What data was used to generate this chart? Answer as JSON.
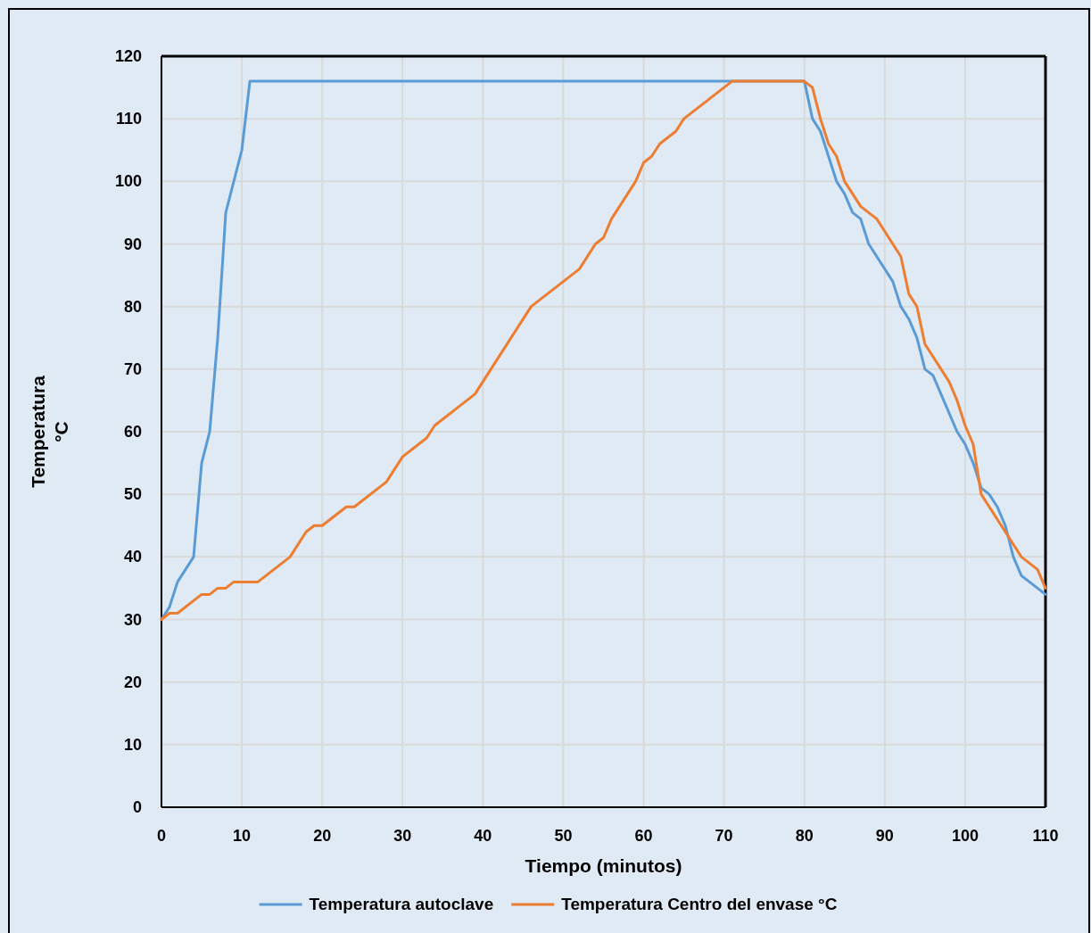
{
  "chart_data": {
    "type": "line",
    "xlabel": "Tiempo (minutos)",
    "ylabel": "Temperatura\n°C",
    "xlim": [
      0,
      110
    ],
    "xticks": [
      0,
      10,
      20,
      30,
      40,
      50,
      60,
      70,
      80,
      90,
      100,
      110
    ],
    "ylim": [
      0,
      120
    ],
    "yticks": [
      0,
      10,
      20,
      30,
      40,
      50,
      60,
      70,
      80,
      90,
      100,
      110,
      120
    ],
    "grid": true,
    "legend": "bottom",
    "marker": "none",
    "line_style": "solid",
    "series": [
      {
        "name": "Temperatura autoclave",
        "color": "#5b9bd5",
        "x": [
          0,
          1,
          2,
          4,
          5,
          6,
          7,
          8,
          10,
          11,
          80,
          81,
          82,
          83,
          84,
          85,
          86,
          87,
          88,
          91,
          92,
          93,
          94,
          95,
          96,
          99,
          100,
          101,
          102,
          103,
          104,
          105,
          106,
          107,
          110
        ],
        "values": [
          30,
          32,
          36,
          40,
          55,
          60,
          75,
          95,
          105,
          116,
          116,
          110,
          108,
          104,
          100,
          98,
          95,
          94,
          90,
          84,
          80,
          78,
          75,
          70,
          69,
          60,
          58,
          55,
          51,
          50,
          48,
          45,
          40,
          37,
          34
        ]
      },
      {
        "name": "Temperatura Centro del envase °C",
        "color": "#ed7d31",
        "x": [
          0,
          1,
          2,
          5,
          6,
          7,
          8,
          9,
          12,
          16,
          18,
          19,
          20,
          23,
          24,
          28,
          30,
          33,
          34,
          37,
          39,
          46,
          52,
          54,
          55,
          56,
          59,
          60,
          61,
          62,
          64,
          65,
          71,
          80,
          81,
          82,
          83,
          84,
          85,
          87,
          89,
          92,
          93,
          94,
          95,
          98,
          99,
          100,
          101,
          102,
          106,
          107,
          109,
          110
        ],
        "values": [
          30,
          31,
          31,
          34,
          34,
          35,
          35,
          36,
          36,
          40,
          44,
          45,
          45,
          48,
          48,
          52,
          56,
          59,
          61,
          64,
          66,
          80,
          86,
          90,
          91,
          94,
          100,
          103,
          104,
          106,
          108,
          110,
          116,
          116,
          115,
          110,
          106,
          104,
          100,
          96,
          94,
          88,
          82,
          80,
          74,
          68,
          65,
          61,
          58,
          50,
          42,
          40,
          38,
          35
        ]
      }
    ]
  }
}
